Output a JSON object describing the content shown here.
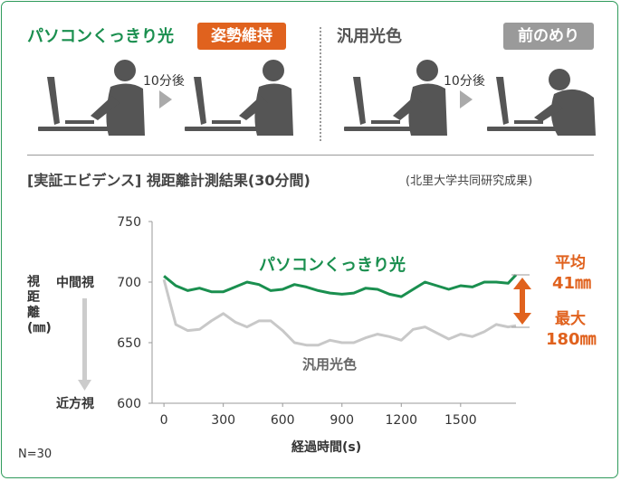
{
  "top": {
    "left_title": "パソコンくっきり光",
    "left_badge": "姿勢維持",
    "right_title": "汎用光色",
    "right_badge": "前のめり",
    "time_label_left": "10分後",
    "time_label_right": "10分後"
  },
  "section": {
    "title": "[実証エビデンス] 視距離計測結果(30分間)",
    "source": "(北里大学共同研究成果)"
  },
  "labels": {
    "near_mid": "中間視",
    "near_close": "近方視",
    "result_avg_label": "平均",
    "result_avg_value": "41㎜",
    "result_max_label": "最大",
    "result_max_value": "180㎜",
    "footnote": "N=30"
  },
  "colors": {
    "green": "#1a8f4f",
    "gray_line": "#c8c8c8",
    "orange": "#e0621e",
    "badge_gray": "#9a9a9a",
    "icon_gray": "#555555"
  },
  "chart_data": {
    "type": "line",
    "xlabel": "経過時間(s)",
    "ylabel": "視距離(㎜)",
    "xlim": [
      -60,
      1780
    ],
    "ylim": [
      600,
      750
    ],
    "x_ticks": [
      0,
      300,
      600,
      900,
      1200,
      1500
    ],
    "y_ticks": [
      600,
      650,
      700,
      750
    ],
    "grid": false,
    "series": [
      {
        "name": "パソコンくっきり光",
        "color": "#1a8f4f",
        "x": [
          0,
          60,
          120,
          180,
          240,
          300,
          360,
          420,
          480,
          540,
          600,
          660,
          720,
          780,
          840,
          900,
          960,
          1020,
          1080,
          1140,
          1200,
          1260,
          1320,
          1380,
          1440,
          1500,
          1560,
          1620,
          1680,
          1740,
          1780
        ],
        "values": [
          705,
          697,
          693,
          695,
          692,
          692,
          696,
          700,
          698,
          693,
          694,
          698,
          696,
          693,
          691,
          690,
          691,
          695,
          694,
          690,
          688,
          694,
          700,
          697,
          694,
          697,
          696,
          700,
          700,
          699,
          706
        ]
      },
      {
        "name": "汎用光色",
        "color": "#c8c8c8",
        "x": [
          0,
          60,
          120,
          180,
          240,
          300,
          360,
          420,
          480,
          540,
          600,
          660,
          720,
          780,
          840,
          900,
          960,
          1020,
          1080,
          1140,
          1200,
          1260,
          1320,
          1380,
          1440,
          1500,
          1560,
          1620,
          1680,
          1740,
          1780
        ],
        "values": [
          702,
          665,
          660,
          661,
          668,
          674,
          667,
          663,
          668,
          668,
          660,
          650,
          648,
          648,
          652,
          650,
          650,
          654,
          657,
          655,
          652,
          661,
          663,
          658,
          653,
          657,
          655,
          659,
          665,
          663,
          664
        ]
      }
    ]
  }
}
